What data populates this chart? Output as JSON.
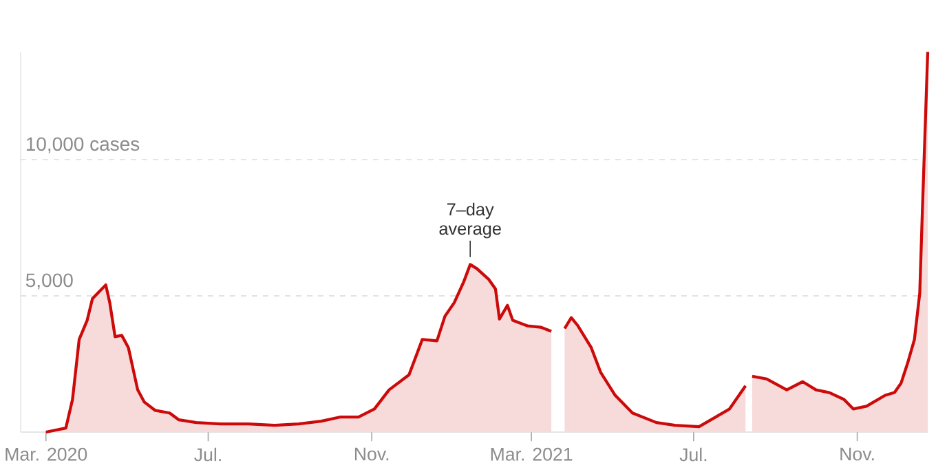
{
  "chart_data": {
    "type": "area",
    "x": [
      "2020-03-01",
      "2020-03-16",
      "2020-03-21",
      "2020-03-26",
      "2020-04-01",
      "2020-04-05",
      "2020-04-10",
      "2020-04-15",
      "2020-04-18",
      "2020-04-22",
      "2020-04-27",
      "2020-05-02",
      "2020-05-09",
      "2020-05-14",
      "2020-05-22",
      "2020-06-02",
      "2020-06-09",
      "2020-06-22",
      "2020-07-10",
      "2020-07-31",
      "2020-08-20",
      "2020-09-07",
      "2020-09-24",
      "2020-10-08",
      "2020-10-22",
      "2020-11-03",
      "2020-11-14",
      "2020-11-29",
      "2020-12-09",
      "2020-12-20",
      "2020-12-26",
      "2021-01-02",
      "2021-01-09",
      "2021-01-14",
      "2021-01-19",
      "2021-01-28",
      "2021-02-02",
      "2021-02-05",
      "2021-02-11",
      "2021-02-15",
      "2021-02-26",
      "2021-03-08",
      "2021-03-16",
      "2021-03-20",
      "2021-03-26",
      "2021-03-31",
      "2021-04-05",
      "2021-04-15",
      "2021-04-22",
      "2021-05-03",
      "2021-05-16",
      "2021-06-03",
      "2021-06-17",
      "2021-07-05",
      "2021-07-14",
      "2021-07-28",
      "2021-08-09",
      "2021-08-11",
      "2021-08-14",
      "2021-08-25",
      "2021-09-09",
      "2021-09-21",
      "2021-10-01",
      "2021-10-11",
      "2021-10-22",
      "2021-10-29",
      "2021-11-08",
      "2021-11-22",
      "2021-11-29",
      "2021-12-04",
      "2021-12-09",
      "2021-12-14",
      "2021-12-18",
      "2021-12-20",
      "2021-12-24"
    ],
    "series": [
      {
        "color": "#cc0a0a",
        "values": [
          0,
          150,
          1200,
          3400,
          4100,
          4900,
          5150,
          5400,
          4750,
          3500,
          3550,
          3100,
          1550,
          1100,
          800,
          700,
          450,
          350,
          300,
          300,
          250,
          300,
          400,
          550,
          550,
          850,
          1550,
          2100,
          3400,
          3350,
          4250,
          4750,
          5500,
          6150,
          6000,
          5600,
          5250,
          4150,
          4650,
          4100,
          3900,
          3850,
          3700,
          null,
          3800,
          4200,
          3900,
          3100,
          2200,
          1350,
          700,
          350,
          250,
          200,
          450,
          850,
          1700,
          null,
          2050,
          1950,
          1550,
          1850,
          1550,
          1450,
          1200,
          850,
          950,
          1350,
          1450,
          1800,
          2550,
          3400,
          5100,
          8150,
          13950
        ]
      }
    ],
    "xlim": [
      "2020-02-11",
      "2021-12-24"
    ],
    "xticks": [
      {
        "value": "2020-03-01",
        "label": "Mar. 2020"
      },
      {
        "value": "2020-07-01",
        "label": "Jul."
      },
      {
        "value": "2020-11-01",
        "label": "Nov."
      },
      {
        "value": "2021-03-01",
        "label": "Mar. 2021"
      },
      {
        "value": "2021-07-01",
        "label": "Jul."
      },
      {
        "value": "2021-11-01",
        "label": "Nov."
      }
    ],
    "ylim": [
      0,
      13950
    ],
    "yticks": [
      {
        "value": 5000,
        "label": "5,000"
      },
      {
        "value": 10000,
        "label": "10,000 cases"
      }
    ],
    "grid": "y",
    "annotations": [
      {
        "text": "7–day average",
        "x": "2021-01-14",
        "y": 6150
      }
    ]
  }
}
